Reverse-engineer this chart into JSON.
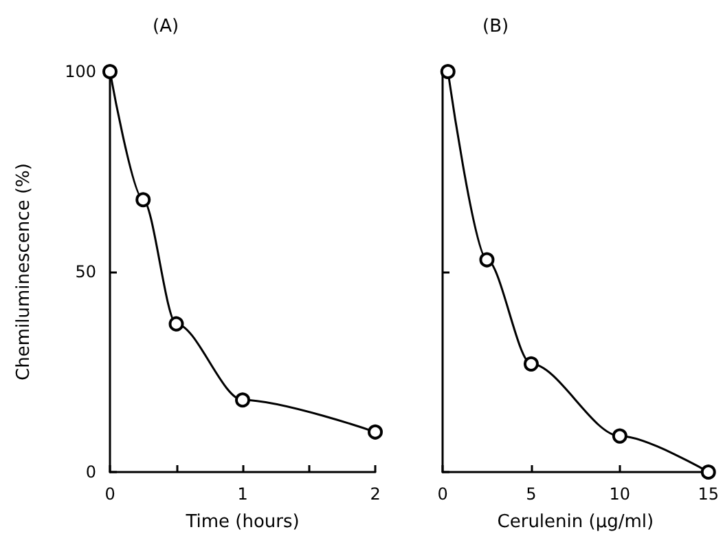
{
  "chart_data": [
    {
      "type": "line",
      "title": "(A)",
      "xlabel": "Time (hours)",
      "ylabel": "Chemiluminescence (%)",
      "x": [
        0,
        0.25,
        0.5,
        1,
        2
      ],
      "values": [
        100,
        68,
        37,
        18,
        10
      ],
      "color": "#000000",
      "marker": "circle",
      "xlim": [
        0,
        2
      ],
      "xticks": [
        0,
        {
          "value": 0.5,
          "label": null
        },
        1,
        {
          "value": 1.5,
          "label": null
        },
        2
      ],
      "ylim": [
        0,
        100
      ],
      "yticks": [
        0,
        50,
        100
      ]
    },
    {
      "type": "line",
      "title": "(B)",
      "xlabel": "Cerulenin (μg/ml)",
      "x": [
        0.3,
        2.5,
        5,
        10,
        15
      ],
      "values": [
        100,
        53,
        27,
        9,
        0
      ],
      "color": "#000000",
      "marker": "circle",
      "xlim": [
        0,
        15
      ],
      "xticks": [
        0,
        5,
        10,
        15
      ],
      "ylim": [
        0,
        100
      ],
      "yticks": [
        0,
        50,
        100
      ],
      "tick_labels": "x"
    }
  ]
}
